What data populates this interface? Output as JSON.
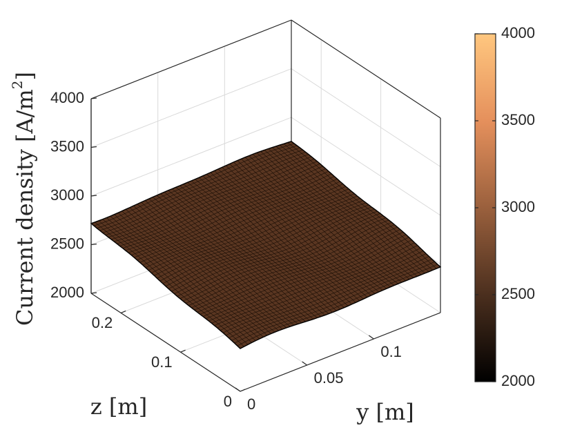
{
  "chart_data": {
    "type": "surface",
    "zlabel": "Current density [A/m²]",
    "zlabel_prefix": "Current density [A/m",
    "zlabel_sup": "2",
    "zlabel_suffix": "]",
    "xlabel": "y [m]",
    "ylabel": "z [m]",
    "y_axis": {
      "range": [
        0,
        0.15
      ],
      "ticks": [
        0,
        0.05,
        0.1
      ],
      "tick_labels": [
        "0",
        "0.05",
        "0.1"
      ]
    },
    "z_axis": {
      "range": [
        0,
        0.25
      ],
      "ticks": [
        0,
        0.1,
        0.2
      ],
      "tick_labels": [
        "0",
        "0.1",
        "0.2"
      ]
    },
    "value_axis": {
      "range": [
        2000,
        4000
      ],
      "ticks": [
        2000,
        2500,
        3000,
        3500,
        4000
      ],
      "tick_labels": [
        "2000",
        "2500",
        "3000",
        "3500",
        "4000"
      ]
    },
    "surface": {
      "corner_values": {
        "y0_z0": 2440,
        "y_max_z0": 2470,
        "y0_z_max": 2730,
        "y_max_z_max": 2770
      },
      "approx_range": [
        2440,
        2790
      ]
    },
    "colorbar": {
      "range": [
        2000,
        4000
      ],
      "tick_labels": [
        "4000",
        "3500",
        "3000",
        "2500",
        "2000"
      ],
      "colormap": "copper",
      "color_low": "#000000",
      "color_high": "#ffc77f"
    },
    "grid": true,
    "colors": {
      "axis": "#262626",
      "grid": "#d9d9d9",
      "surface": "#5a3621",
      "mesh": "#1a0e06"
    }
  }
}
